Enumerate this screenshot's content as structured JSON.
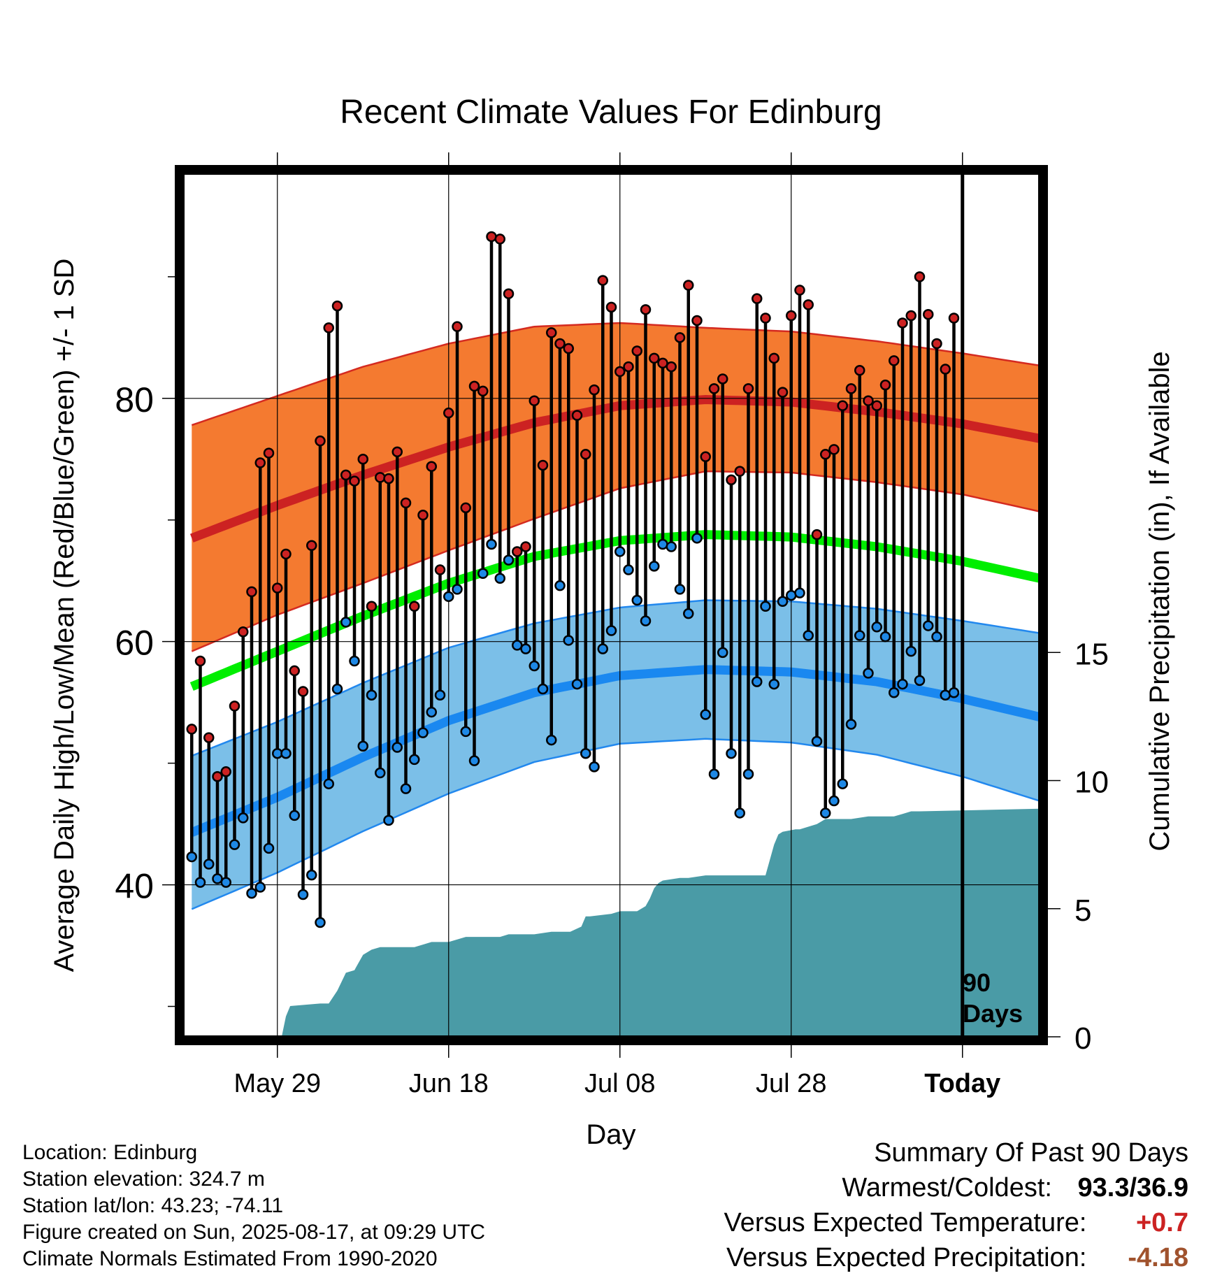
{
  "chart_data": {
    "type": "line",
    "title": "Recent Climate Values For Edinburg",
    "xlabel": "Day",
    "ylabel": "Average Daily High/Low/Mean (Red/Blue/Green) +/- 1 SD",
    "y2label": "Cumulative Precipitation (in), If Available",
    "x_tick_labels": [
      "May 29",
      "Jun 18",
      "Jul 08",
      "Jul 28",
      "Today"
    ],
    "x_tick_days": [
      -80,
      -60,
      -40,
      -20,
      0
    ],
    "xlim_days": [
      -91,
      9
    ],
    "ylim": [
      27.5,
      98.5
    ],
    "y_ticks": [
      40,
      60,
      80
    ],
    "y_minor_ticks": [
      30,
      50,
      70,
      90
    ],
    "y2_ticks": [
      0,
      5,
      10,
      15
    ],
    "y2_tick_labels": [
      "0",
      "5",
      "10",
      "15"
    ],
    "y2lim": [
      0,
      33.7
    ],
    "today_label_line1": "90",
    "today_label_line2": "Days",
    "colors": {
      "high_band": "#f47a30",
      "high_edge": "#d42a20",
      "high_mean": "#cc2222",
      "mean_line": "#00ee00",
      "low_band": "#7bbfe8",
      "low_edge": "#2288ee",
      "low_mean": "#1a88f0",
      "precip": "#4a9ba6",
      "high_dot": "#cc2222",
      "low_dot": "#1e88e5"
    },
    "normals": {
      "days": [
        -90,
        -80,
        -70,
        -60,
        -50,
        -40,
        -30,
        -20,
        -10,
        0,
        9
      ],
      "high": [
        68.5,
        71.2,
        73.7,
        76.0,
        78.0,
        79.4,
        79.9,
        79.7,
        78.9,
        77.9,
        76.7
      ],
      "high_sd": [
        9.3,
        9.0,
        8.9,
        8.5,
        7.9,
        6.8,
        5.9,
        5.8,
        5.8,
        5.8,
        6.0
      ],
      "low": [
        44.3,
        47.2,
        50.5,
        53.5,
        55.8,
        57.2,
        57.7,
        57.5,
        56.7,
        55.3,
        53.8
      ],
      "low_sd": [
        6.3,
        6.2,
        6.1,
        6.0,
        5.7,
        5.6,
        5.7,
        5.8,
        6.0,
        6.4,
        6.9
      ],
      "mean": [
        56.3,
        59.2,
        62.1,
        64.8,
        67.0,
        68.3,
        68.8,
        68.6,
        67.8,
        66.6,
        65.2
      ]
    },
    "daily": {
      "start_day": -90,
      "high": [
        52.8,
        58.4,
        52.1,
        48.9,
        49.3,
        54.7,
        60.8,
        64.1,
        74.7,
        75.5,
        64.4,
        67.2,
        57.6,
        55.9,
        67.9,
        76.5,
        85.8,
        87.6,
        73.7,
        73.2,
        75.0,
        62.9,
        73.5,
        73.4,
        75.6,
        71.4,
        62.9,
        70.4,
        74.4,
        65.9,
        78.8,
        85.9,
        71.0,
        81.0,
        80.6,
        93.3,
        93.1,
        88.6,
        67.4,
        67.8,
        79.8,
        74.5,
        85.4,
        84.5,
        84.1,
        78.6,
        75.4,
        80.7,
        89.7,
        87.5,
        82.2,
        82.6,
        83.9,
        87.3,
        83.3,
        82.9,
        82.6,
        85.0,
        89.3,
        86.4,
        75.2,
        80.8,
        81.6,
        73.3,
        74.0,
        80.8,
        88.2,
        86.6,
        83.3,
        80.5,
        86.8,
        88.9,
        87.7,
        68.8,
        75.4,
        75.8,
        79.4,
        80.8,
        82.3,
        79.8,
        79.4,
        81.1,
        83.1,
        86.2,
        86.8,
        90.0,
        86.9,
        84.5,
        82.4,
        86.6
      ],
      "low": [
        42.3,
        40.2,
        41.7,
        40.5,
        40.2,
        43.3,
        45.5,
        39.3,
        39.8,
        43.0,
        50.8,
        50.8,
        45.7,
        39.2,
        40.8,
        36.9,
        48.3,
        56.1,
        61.6,
        58.4,
        51.4,
        55.6,
        49.2,
        45.3,
        51.3,
        47.9,
        50.3,
        52.5,
        54.2,
        55.6,
        63.7,
        64.3,
        52.6,
        50.2,
        65.6,
        68.0,
        65.2,
        66.7,
        59.7,
        59.4,
        58.0,
        56.1,
        51.9,
        64.6,
        60.1,
        56.5,
        50.8,
        49.7,
        59.4,
        60.9,
        67.4,
        65.9,
        63.4,
        61.7,
        66.2,
        68.0,
        67.8,
        64.3,
        62.3,
        68.5,
        54.0,
        49.1,
        59.1,
        50.8,
        45.9,
        49.1,
        56.7,
        62.9,
        56.5,
        63.3,
        63.8,
        64.0,
        60.5,
        51.8,
        45.9,
        46.9,
        48.3,
        53.2,
        60.5,
        57.4,
        61.2,
        60.4,
        55.8,
        56.5,
        59.2,
        56.8,
        61.3,
        60.4,
        55.6,
        55.8
      ]
    },
    "precip_cumulative": {
      "days": [
        -91,
        -79.5,
        -79,
        -78.5,
        -75,
        -74,
        -73,
        -72,
        -71,
        -70,
        -69,
        -68,
        -67,
        -66,
        -64,
        -63,
        -62,
        -60,
        -58,
        -57,
        -54,
        -53,
        -50,
        -48,
        -47,
        -46,
        -45.8,
        -44.5,
        -44,
        -43.5,
        -41,
        -40,
        -38,
        -37.5,
        -37,
        -36.5,
        -36,
        -35.5,
        -35,
        -33,
        -32,
        -30,
        -27.8,
        -27.5,
        -24,
        -23,
        -22,
        -21.5,
        -21,
        -19.5,
        -19,
        -17,
        -16,
        -15,
        -13,
        -11,
        -8,
        -7,
        -6,
        -5,
        9
      ],
      "precip": [
        0,
        0,
        0.8,
        1.2,
        1.3,
        1.3,
        1.8,
        2.5,
        2.6,
        3.2,
        3.4,
        3.5,
        3.5,
        3.5,
        3.5,
        3.6,
        3.7,
        3.7,
        3.9,
        3.9,
        3.9,
        4.0,
        4.0,
        4.1,
        4.1,
        4.1,
        4.1,
        4.3,
        4.7,
        4.7,
        4.8,
        4.9,
        4.9,
        5.0,
        5.1,
        5.4,
        5.8,
        6.0,
        6.1,
        6.2,
        6.2,
        6.3,
        6.3,
        6.3,
        6.3,
        6.3,
        7.5,
        7.9,
        8.0,
        8.1,
        8.1,
        8.3,
        8.5,
        8.5,
        8.5,
        8.6,
        8.6,
        8.7,
        8.8,
        8.8,
        8.9
      ]
    }
  },
  "footer": {
    "location": "Location: Edinburg",
    "elevation": "Station elevation: 324.7 m",
    "latlon": "Station lat/lon: 43.23; -74.11",
    "created": "Figure created on Sun, 2025-08-17, at 09:29 UTC",
    "normals": "Climate Normals Estimated From 1990-2020"
  },
  "summary": {
    "title": "Summary Of Past 90 Days",
    "warm_cold_label": "Warmest/Coldest:",
    "warm_cold_value": "93.3/36.9",
    "temp_label": "Versus Expected Temperature:",
    "temp_value": "+0.7",
    "temp_color": "#cc2222",
    "precip_label": "Versus Expected Precipitation:",
    "precip_value": "-4.18",
    "precip_color": "#a0522d"
  }
}
